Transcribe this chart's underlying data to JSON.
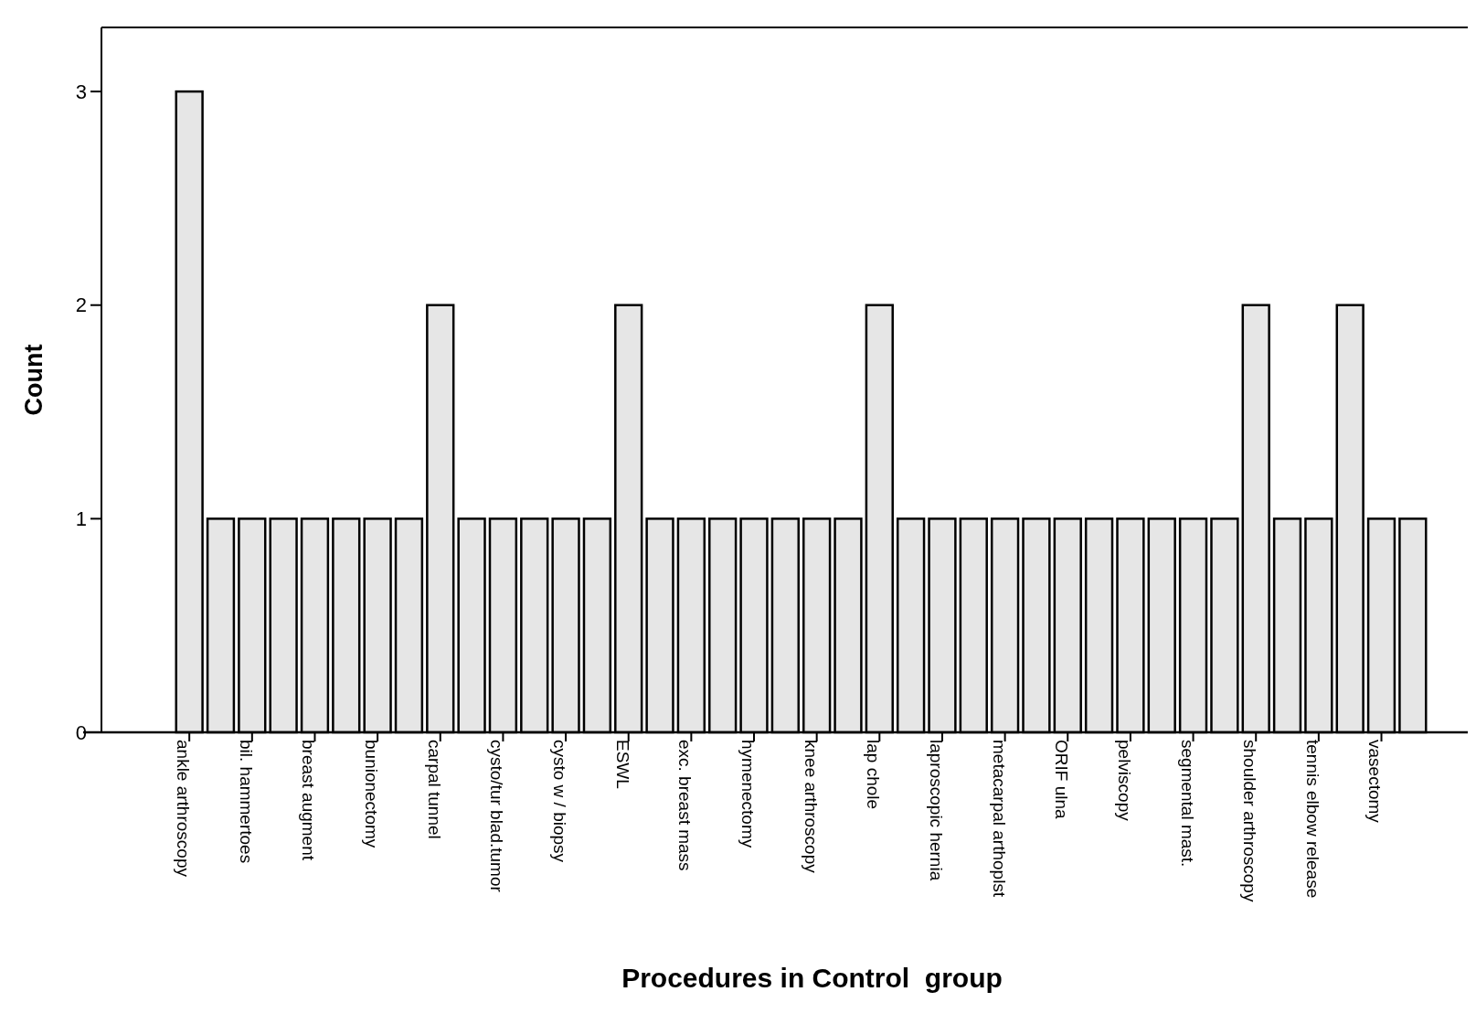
{
  "chart_data": {
    "type": "bar",
    "xlabel": "Procedures in Control  group",
    "ylabel": "Count",
    "categories": [
      "ankle arthroscopy",
      null,
      "bil. hammertoes",
      null,
      "breast augment",
      null,
      "bunionectomy",
      null,
      "carpal tunnel",
      null,
      "cysto/tur blad.tumor",
      null,
      "cysto w / biopsy",
      null,
      "ESWL",
      null,
      "exc. breast mass",
      null,
      "hymenectomy",
      null,
      "knee arthroscopy",
      null,
      "lap chole",
      null,
      "laproscopic hernia",
      null,
      "metacarpal arthoplst",
      null,
      "ORIF ulna",
      null,
      "pelviscopy",
      null,
      "segmental mast.",
      null,
      "shoulder arthroscopy",
      null,
      "tennis elbow release",
      null,
      "vasectomy",
      null
    ],
    "values": [
      3,
      1,
      1,
      1,
      1,
      1,
      1,
      1,
      2,
      1,
      1,
      1,
      1,
      1,
      2,
      1,
      1,
      1,
      1,
      1,
      1,
      1,
      2,
      1,
      1,
      1,
      1,
      1,
      1,
      1,
      1,
      1,
      1,
      1,
      2,
      1,
      1,
      2,
      1,
      1
    ],
    "color": "#e6e6e6",
    "ylim": [
      0,
      3.3
    ],
    "yticks": [
      0,
      1,
      2,
      3
    ],
    "grid": false
  }
}
